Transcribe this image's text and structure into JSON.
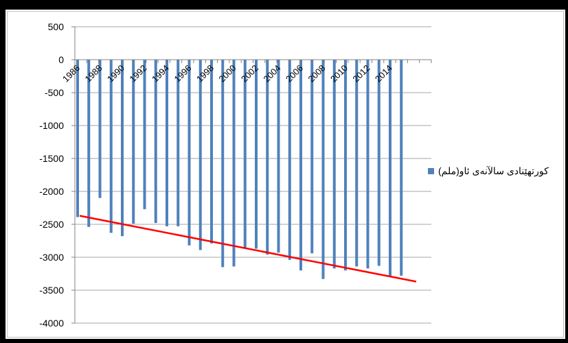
{
  "chart_data": {
    "type": "bar",
    "legend": {
      "label": "کورتهێنادی سالآنەی ئاو(ملم)",
      "placement": "right"
    },
    "ylim": [
      -4000,
      500
    ],
    "yticks": [
      500,
      0,
      -500,
      -1000,
      -1500,
      -2000,
      -2500,
      -3000,
      -3500,
      -4000
    ],
    "xtick_labels": [
      "1986",
      "1988",
      "1990",
      "1992",
      "1994",
      "1996",
      "1998",
      "2000",
      "2002",
      "2004",
      "2006",
      "2008",
      "2010",
      "2012",
      "2014"
    ],
    "categories": [
      1986,
      1987,
      1988,
      1989,
      1990,
      1991,
      1992,
      1993,
      1994,
      1995,
      1996,
      1997,
      1998,
      1999,
      2000,
      2001,
      2002,
      2003,
      2004,
      2005,
      2006,
      2007,
      2008,
      2009,
      2010,
      2011,
      2012,
      2013,
      2014,
      2015
    ],
    "values": [
      -2390,
      -2540,
      -2100,
      -2630,
      -2680,
      -2490,
      -2270,
      -2480,
      -2530,
      -2530,
      -2820,
      -2890,
      -2790,
      -3150,
      -3140,
      -2870,
      -2870,
      -2960,
      -2930,
      -3040,
      -3200,
      -2940,
      -3330,
      -3170,
      -3200,
      -3140,
      -3170,
      -3130,
      -3290,
      -3280
    ],
    "trendline": {
      "type": "linear",
      "start": -2370,
      "end": -3370
    },
    "grid": true,
    "colors": {
      "bar": "#4f81bd",
      "trend": "#ff0000",
      "grid": "#a6a6a6",
      "axis": "#808080"
    }
  }
}
